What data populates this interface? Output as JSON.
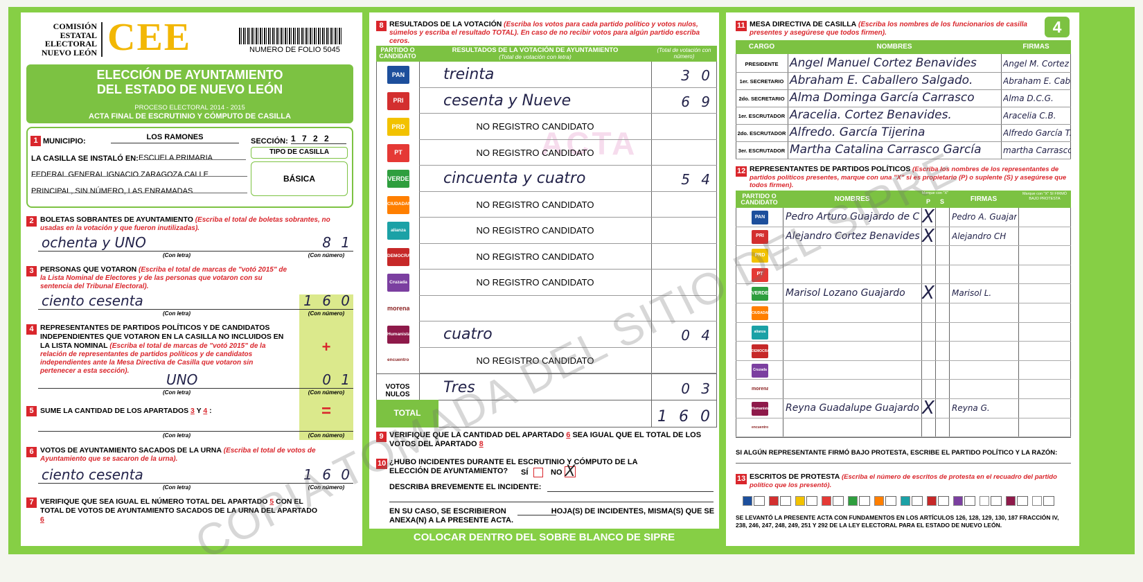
{
  "header": {
    "institution": "COMISIÓN ESTATAL ELECTORAL NUEVO LEÓN",
    "logo": "CEE",
    "folio": "NUMERO DE FOLIO 5045",
    "title": "ELECCIÓN DE AYUNTAMIENTO DEL ESTADO DE NUEVO LEÓN",
    "process": "PROCESO ELECTORAL 2014 - 2015",
    "subtitle": "ACTA FINAL DE ESCRUTINIO Y CÓMPUTO DE CASILLA",
    "sheet": "4"
  },
  "captions": {
    "letter": "(Con letra)",
    "number": "(Con número)"
  },
  "s1": {
    "num": "1",
    "municipio_label": "MUNICIPIO:",
    "municipio": "LOS RAMONES",
    "seccion_label": "SECCIÓN:",
    "seccion": "1 7 2 2",
    "casilla_label": "LA CASILLA SE INSTALÓ EN:",
    "address": "ESCUELA PRIMARIA FEDERAL GENERAL IGNACIO ZARAGOZA CALLE PRINCIPAL, SIN NÚMERO, LAS ENRAMADAS",
    "tipo_label": "TIPO DE CASILLA",
    "tipo": "BÁSICA"
  },
  "s2": {
    "num": "2",
    "label": "BOLETAS SOBRANTES DE AYUNTAMIENTO",
    "hint": "(Escriba el total de boletas sobrantes, no usadas en la votación y que fueron inutilizadas).",
    "letter": "ochenta y UNO",
    "number": "8 1"
  },
  "s3": {
    "num": "3",
    "label": "PERSONAS QUE VOTARON",
    "hint": "(Escriba el total de marcas de \"votó 2015\" de la Lista Nominal de Electores y de las personas que votaron con su sentencia del Tribunal Electoral).",
    "letter": "ciento cesenta",
    "number": "1 6 0"
  },
  "s4": {
    "num": "4",
    "label": "REPRESENTANTES DE PARTIDOS POLÍTICOS Y DE CANDIDATOS INDEPENDIENTES QUE VOTARON EN LA CASILLA NO INCLUIDOS EN LA LISTA NOMINAL",
    "hint": "(Escriba el total de marcas de \"votó 2015\" de la relación de representantes de partidos políticos y de candidatos independientes ante la Mesa Directiva de Casilla que votaron sin pertenecer a esta sección).",
    "letter": "UNO",
    "number": "0 1",
    "operator": "+"
  },
  "s5": {
    "num": "5",
    "label": "SUME LA CANTIDAD DE LOS APARTADOS",
    "ref_a": "3",
    "conj": "Y",
    "ref_b": "4",
    "end": ":",
    "operator": "="
  },
  "s6": {
    "num": "6",
    "label": "VOTOS DE AYUNTAMIENTO SACADOS DE LA URNA",
    "hint": "(Escriba el total de votos de Ayuntamiento que se sacaron de la urna).",
    "letter": "ciento cesenta",
    "number": "1 6 0"
  },
  "s7": {
    "num": "7",
    "text_a": "VERIFIQUE QUE SEA IGUAL EL NÚMERO TOTAL DEL APARTADO",
    "ref_a": "5",
    "text_b": "CON EL TOTAL DE VOTOS DE AYUNTAMIENTO SACADOS DE LA URNA DEL APARTADO",
    "ref_b": "6"
  },
  "s8": {
    "num": "8",
    "label": "RESULTADOS DE LA VOTACIÓN",
    "hint": "(Escriba los votos para cada partido político y votos nulos, súmelos y escriba el resultado TOTAL).",
    "hint2": "En caso de no recibir votos para algún partido escriba ceros.",
    "col_party": "PARTIDO O CANDIDATO",
    "col_results": "RESULTADOS DE LA VOTACIÓN DE AYUNTAMIENTO",
    "col_letter": "(Total de votación con letra)",
    "col_number": "(Total de votación con número)",
    "watermark": "ACTA",
    "parties": [
      {
        "logo": "PAN",
        "color": "#1d4f9c",
        "letter": "treinta",
        "number": "3 0"
      },
      {
        "logo": "PRI",
        "color": "#d32f2f",
        "letter": "cesenta y Nueve",
        "number": "6 9"
      },
      {
        "logo": "PRD",
        "color": "#f2c200",
        "note": "NO REGISTRO CANDIDATO"
      },
      {
        "logo": "PT",
        "color": "#e53935",
        "note": "NO REGISTRO CANDIDATO"
      },
      {
        "logo": "VERDE",
        "color": "#2e9e3e",
        "letter": "cincuenta y cuatro",
        "number": "5 4"
      },
      {
        "logo": "CIUDADANO",
        "color": "#ff7f00",
        "note": "NO REGISTRO CANDIDATO"
      },
      {
        "logo": "alianza",
        "color": "#1ba1a6",
        "note": "NO REGISTRO CANDIDATO"
      },
      {
        "logo": "DEMOCRACIA",
        "color": "#c62828",
        "note": "NO REGISTRO CANDIDATO"
      },
      {
        "logo": "Cruzada",
        "color": "#7b3fa0",
        "note": "NO REGISTRO CANDIDATO"
      },
      {
        "logo": "morena",
        "color": "#ffffff"
      },
      {
        "logo": "Humanista",
        "color": "#8e1a4a",
        "letter": "cuatro",
        "number": "0 4"
      },
      {
        "logo": "encuentro social",
        "color": "#ffffff",
        "note": "NO REGISTRO CANDIDATO"
      }
    ],
    "nulos": {
      "label": "VOTOS NULOS",
      "letter": "Tres",
      "number": "0 3"
    },
    "total": {
      "label": "TOTAL",
      "number": "1 6 0"
    }
  },
  "s9": {
    "num": "9",
    "text_a": "VERIFIQUE QUE LA CANTIDAD DEL APARTADO",
    "ref_a": "6",
    "text_b": "SEA IGUAL QUE EL TOTAL DE LOS VOTOS DEL APARTADO",
    "ref_b": "8"
  },
  "s10": {
    "num": "10",
    "question": "¿HUBO INCIDENTES DURANTE EL ESCRUTINIO Y CÓMPUTO DE LA ELECCIÓN DE AYUNTAMIENTO?",
    "si": "SÍ",
    "no": "NO",
    "mark": "X",
    "describe": "DESCRIBA BREVEMENTE EL INCIDENTE:",
    "sheets_a": "EN SU CASO, SE ESCRIBIERON",
    "sheets_b": "HOJA(S) DE INCIDENTES, MISMA(S) QUE SE ANEXA(N) A LA PRESENTE ACTA."
  },
  "s11": {
    "num": "11",
    "label": "MESA DIRECTIVA DE CASILLA",
    "hint": "(Escriba los nombres de los funcionarios de casilla presentes y asegúrese que todos firmen).",
    "col_cargo": "CARGO",
    "col_names": "NOMBRES",
    "col_firmas": "FIRMAS",
    "rows": [
      {
        "cargo": "PRESIDENTE",
        "name": "Angel Manuel Cortez Benavides",
        "firma": "Angel M. Cortez"
      },
      {
        "cargo": "1er. SECRETARIO",
        "name": "Abraham E. Caballero Salgado.",
        "firma": "Abraham E. Caballero"
      },
      {
        "cargo": "2do. SECRETARIO",
        "name": "Alma Dominga García Carrasco",
        "firma": "Alma D.C.G."
      },
      {
        "cargo": "1er. ESCRUTADOR",
        "name": "Aracelia. Cortez Benavides.",
        "firma": "Aracelia C.B."
      },
      {
        "cargo": "2do. ESCRUTADOR",
        "name": "Alfredo. García Tijerina",
        "firma": "Alfredo García T."
      },
      {
        "cargo": "3er. ESCRUTADOR",
        "name": "Martha Catalina Carrasco García",
        "firma": "martha Carrasco"
      }
    ]
  },
  "s12": {
    "num": "12",
    "label": "REPRESENTANTES DE PARTIDOS POLÍTICOS",
    "hint": "(Escriba los nombres de los representantes de partidos políticos presentes, marque con una \"X\" si es propietario (P) o suplente (S) y asegúrese que todos firmen).",
    "col_party": "PARTIDO O CANDIDATO",
    "col_names": "NOMBRES",
    "col_mark": "Marque con \"X\"",
    "col_p": "P",
    "col_s": "S",
    "col_firmas": "FIRMAS",
    "col_protest": "Marque con \"X\" SI FIRMÓ BAJO PROTESTA",
    "reps": [
      {
        "name": "Pedro Arturo Guajardo de Cruz",
        "p": "X",
        "firma": "Pedro A. Guajardo"
      },
      {
        "name": "Alejandro Cortez Benavides",
        "p": "X",
        "firma": "Alejandro CH"
      },
      null,
      null,
      {
        "name": "Marisol Lozano Guajardo",
        "p": "X",
        "firma": "Marisol L."
      },
      null,
      null,
      null,
      null,
      null,
      {
        "name": "Reyna Guadalupe Guajardo Garza",
        "p": "X",
        "firma": "Reyna G."
      },
      null
    ],
    "protest_note": "SI ALGÚN REPRESENTANTE FIRMÓ BAJO PROTESTA, ESCRIBE EL PARTIDO POLÍTICO Y LA RAZÓN:"
  },
  "s13": {
    "num": "13",
    "label": "ESCRITOS DE PROTESTA",
    "hint": "(Escriba el número de escritos de protesta en el recuadro del partido político que los presentó).",
    "legal": "SE LEVANTÓ LA PRESENTE ACTA CON FUNDAMENTOS EN LOS ARTÍCULOS 126, 128, 129, 130, 187 FRACCIÓN IV, 238, 246, 247, 248, 249, 251 Y 292 DE LA LEY ELECTORAL PARA EL ESTADO DE NUEVO LEÓN."
  },
  "footer": "COLOCAR DENTRO DEL SOBRE BLANCO DE SIPRE",
  "watermark": "COPIA TOMADA DEL SITIO DEL SIPRE"
}
